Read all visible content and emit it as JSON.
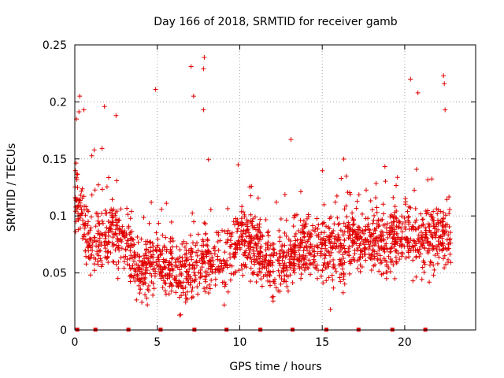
{
  "chart_data": {
    "type": "scatter",
    "title": "Day 166 of 2018, SRMTID for receiver gamb",
    "xlabel": "GPS time / hours",
    "ylabel": "SRMTID / TECUs",
    "xlim": [
      0,
      24.3
    ],
    "ylim": [
      0,
      0.25
    ],
    "x_ticks": [
      0,
      5,
      10,
      15,
      20
    ],
    "x_tick_labels": [
      "0",
      "5",
      "10",
      "15",
      "20"
    ],
    "y_ticks": [
      0,
      0.05,
      0.1,
      0.15,
      0.2,
      0.25
    ],
    "y_tick_labels": [
      "0",
      "0.05",
      "0.1",
      "0.15",
      "0.2",
      "0.25"
    ],
    "grid": true,
    "marker": "+",
    "color": "#e00000",
    "x_range_hours": [
      0,
      22.8
    ],
    "n_points": 2000,
    "baseline_markers_x": [
      0.15,
      1.25,
      3.25,
      5.2,
      7.25,
      9.2,
      11.25,
      13.2,
      15.25,
      17.2,
      19.25,
      21.25
    ],
    "series_profile": {
      "name": "SRMTID",
      "x": [
        0,
        0.5,
        1,
        2,
        3,
        4,
        5,
        6,
        6.5,
        7,
        8,
        9,
        10,
        11,
        12,
        13,
        14,
        15,
        16,
        17,
        18,
        19,
        20,
        21,
        22,
        22.8
      ],
      "y": [
        0.12,
        0.1,
        0.075,
        0.085,
        0.075,
        0.05,
        0.06,
        0.055,
        0.045,
        0.05,
        0.065,
        0.055,
        0.08,
        0.075,
        0.055,
        0.065,
        0.075,
        0.07,
        0.065,
        0.075,
        0.075,
        0.075,
        0.085,
        0.075,
        0.08,
        0.085
      ]
    },
    "notable_points": [
      {
        "x": 0.1,
        "y": 0.185
      },
      {
        "x": 0.3,
        "y": 0.205
      },
      {
        "x": 0.55,
        "y": 0.193
      },
      {
        "x": 1.8,
        "y": 0.196
      },
      {
        "x": 2.5,
        "y": 0.188
      },
      {
        "x": 4.9,
        "y": 0.211
      },
      {
        "x": 7.05,
        "y": 0.231
      },
      {
        "x": 7.2,
        "y": 0.205
      },
      {
        "x": 7.85,
        "y": 0.239
      },
      {
        "x": 7.8,
        "y": 0.229
      },
      {
        "x": 7.8,
        "y": 0.193
      },
      {
        "x": 13.1,
        "y": 0.167
      },
      {
        "x": 20.35,
        "y": 0.22
      },
      {
        "x": 20.8,
        "y": 0.208
      },
      {
        "x": 22.35,
        "y": 0.223
      },
      {
        "x": 22.4,
        "y": 0.216
      },
      {
        "x": 22.45,
        "y": 0.193
      },
      {
        "x": 6.35,
        "y": 0.013
      },
      {
        "x": 15.5,
        "y": 0.018
      },
      {
        "x": 4.4,
        "y": 0.022
      }
    ]
  }
}
